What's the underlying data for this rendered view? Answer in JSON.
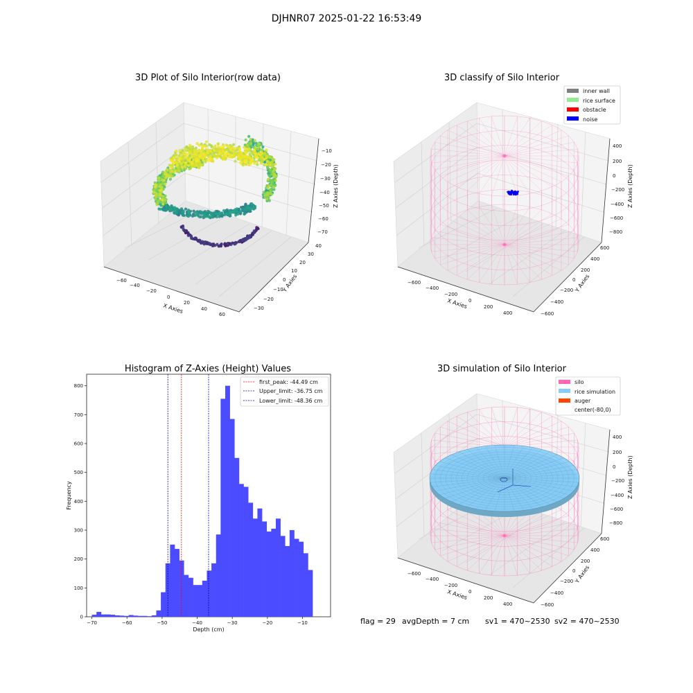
{
  "suptitle": "DJHNR07 2025-01-22 16:53:49",
  "footer": {
    "flag": "flag = 29",
    "avg_depth": "avgDepth = 7 cm",
    "sv1": "sv1 = 470~2530",
    "sv2": "sv2 = 470~2530"
  },
  "colors": {
    "histogram": "#4b4bff",
    "first_peak": "#ff0000",
    "limits": "#0000aa",
    "inner_wall": "#808080",
    "rice_surface": "#90ee90",
    "obstacle": "#ff0000",
    "noise": "#0000ee",
    "silo": "#ff69b4",
    "rice_simulation": "#87cefa",
    "auger": "#ff4500"
  },
  "chart_data": [
    {
      "type": "scatter3d",
      "title": "3D Plot of Silo Interior(row data)",
      "xlabel": "X Axies",
      "ylabel": "Y Axies",
      "zlabel": "Z Axies (Depth)",
      "xticks": [
        "−60",
        "−40",
        "−20",
        "0",
        "20",
        "40",
        "60"
      ],
      "yticks": [
        "−30",
        "−20",
        "−10",
        "0",
        "10",
        "20",
        "30",
        "40"
      ],
      "zticks": [
        "−10",
        "−20",
        "−30",
        "−40",
        "−50",
        "−60",
        "−70"
      ],
      "zlim": [
        -72,
        -5
      ],
      "colormap": "viridis"
    },
    {
      "type": "scatter3d",
      "title": "3D classify of Silo Interior",
      "xlabel": "X Axies",
      "ylabel": "Y Axies",
      "zlabel": "Z Axies (Depth)",
      "xticks": [
        "−600",
        "−400",
        "−200",
        "0",
        "200",
        "400"
      ],
      "yticks": [
        "−600",
        "−400",
        "−200",
        "0",
        "200",
        "400",
        "600"
      ],
      "zticks": [
        "400",
        "200",
        "0",
        "−200",
        "−400",
        "−600",
        "−800"
      ],
      "legend": [
        "inner wall",
        "rice surface",
        "obstacle",
        "noise"
      ],
      "legend_position": "top-right"
    },
    {
      "type": "bar",
      "title": "Histogram of Z-Axies (Height) Values",
      "xlabel": "Depth (cm)",
      "ylabel": "Frequency",
      "xlim": [
        -71.5,
        -2
      ],
      "ylim": [
        0,
        840
      ],
      "xticks": [
        -70,
        -60,
        -50,
        -40,
        -30,
        -20,
        -10
      ],
      "xtick_labels": [
        "−70",
        "−60",
        "−50",
        "−40",
        "−30",
        "−20",
        "−10"
      ],
      "yticks": [
        0,
        100,
        200,
        300,
        400,
        500,
        600,
        700,
        800
      ],
      "bin_start": -70.0,
      "bin_width": 1.31,
      "values": [
        7,
        17,
        8,
        8,
        7,
        5,
        4,
        3,
        6,
        4,
        3,
        3,
        2,
        5,
        22,
        85,
        185,
        250,
        235,
        195,
        145,
        135,
        110,
        110,
        125,
        160,
        185,
        285,
        755,
        800,
        685,
        550,
        460,
        450,
        395,
        340,
        375,
        330,
        295,
        305,
        340,
        280,
        245,
        300,
        270,
        260,
        220,
        162
      ],
      "vlines": [
        {
          "label": "first_peak: -44.49 cm",
          "x": -44.49,
          "style": "red-dashed"
        },
        {
          "label": "Upper_limit: -36.75 cm",
          "x": -36.75,
          "style": "blue-dashed"
        },
        {
          "label": "Lower_limit: -48.36 cm",
          "x": -48.36,
          "style": "blue-dashed"
        }
      ],
      "legend_position": "top-right"
    },
    {
      "type": "surface3d",
      "title": "3D simulation of Silo Interior",
      "xlabel": "X Axies",
      "ylabel": "Y Axies",
      "zlabel": "Z Axies (Depth)",
      "xticks": [
        "−600",
        "−400",
        "−200",
        "0",
        "200",
        "400"
      ],
      "yticks": [
        "−600",
        "−400",
        "−200",
        "0",
        "200",
        "400",
        "600"
      ],
      "zticks": [
        "400",
        "200",
        "0",
        "−200",
        "−400",
        "−600",
        "−800"
      ],
      "legend": [
        "silo",
        "rice simulation",
        "auger",
        "center(-80,0)"
      ],
      "legend_position": "top-right"
    }
  ]
}
